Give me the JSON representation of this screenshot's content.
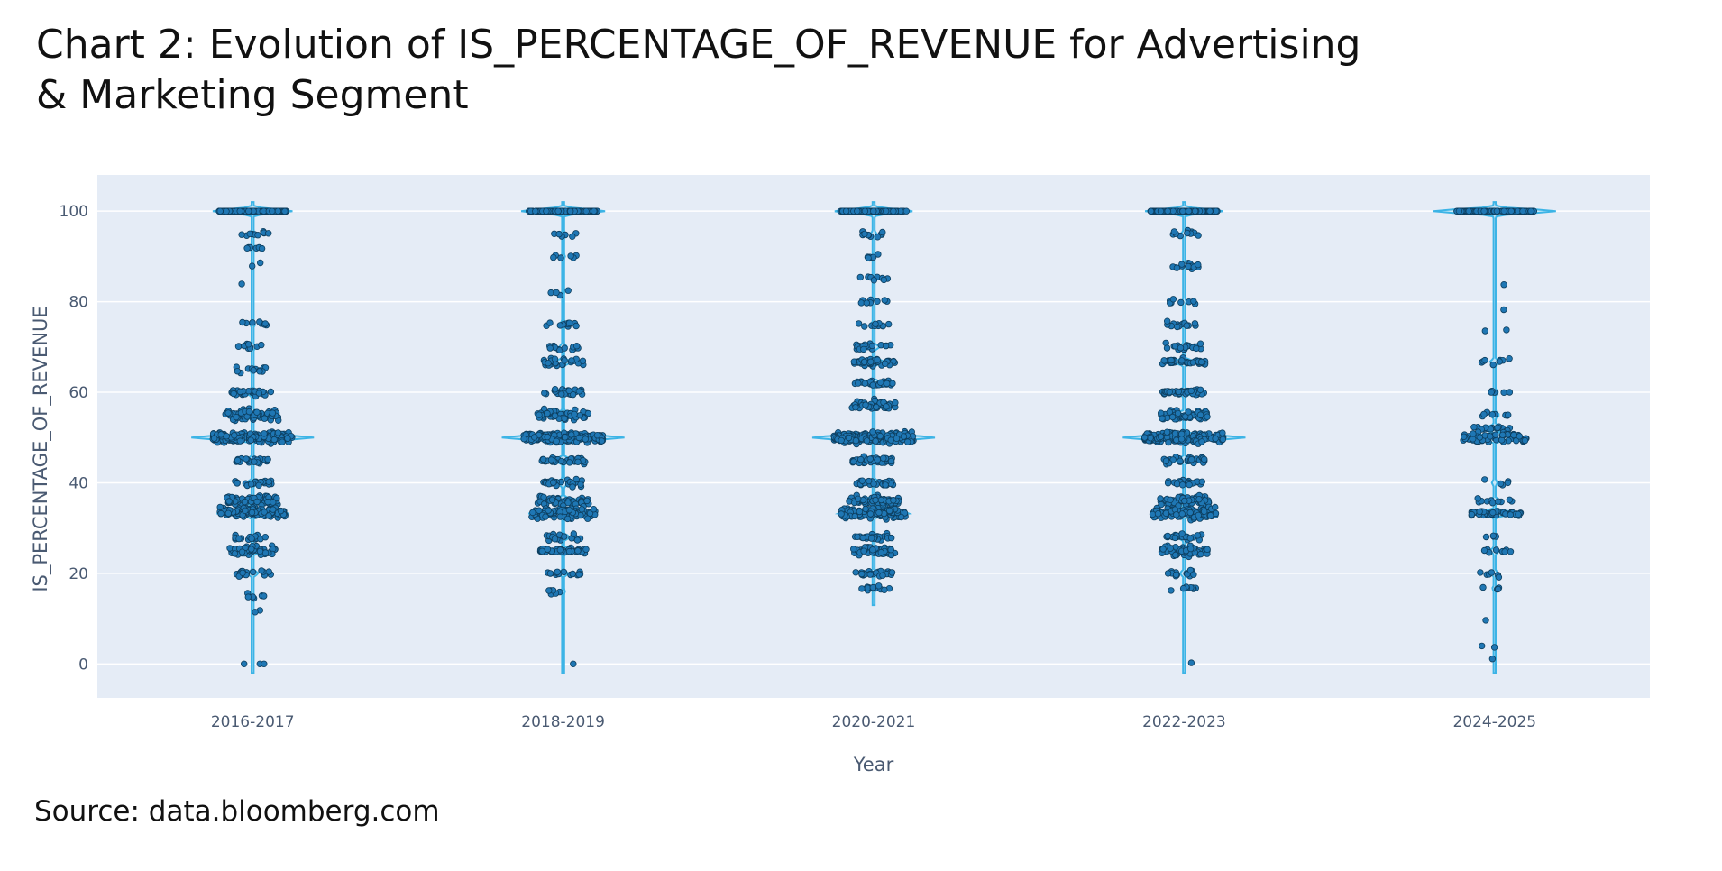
{
  "title": "Chart 2: Evolution of IS_PERCENTAGE_OF_REVENUE for Advertising & Marketing Segment",
  "source": "Source: data.bloomberg.com",
  "colors": {
    "plot_background": "#e5ecf6",
    "gridline": "#ffffff",
    "violin_line": "#3cb4e6",
    "violin_fill": "#a6dcf5",
    "point_fill": "#1f77b4",
    "point_outline": "#0d3e5e"
  },
  "chart_data": {
    "type": "violin",
    "xlabel": "Year",
    "ylabel": "IS_PERCENTAGE_OF_REVENUE",
    "ylim": [
      -7.5,
      108
    ],
    "y_ticks": [
      0,
      20,
      40,
      60,
      80,
      100
    ],
    "grid": true,
    "points_shown": "all (jittered)",
    "categories": [
      "2016-2017",
      "2018-2019",
      "2020-2021",
      "2022-2023",
      "2024-2025"
    ],
    "series": [
      {
        "category": "2016-2017",
        "y_range": [
          0,
          100
        ],
        "value_clusters": [
          {
            "y": 100,
            "count": 130
          },
          {
            "y": 95,
            "count": 10
          },
          {
            "y": 92,
            "count": 6
          },
          {
            "y": 88,
            "count": 2
          },
          {
            "y": 83,
            "count": 1
          },
          {
            "y": 75,
            "count": 8
          },
          {
            "y": 70,
            "count": 10
          },
          {
            "y": 65,
            "count": 12
          },
          {
            "y": 60,
            "count": 30
          },
          {
            "y": 55,
            "count": 70
          },
          {
            "y": 50,
            "count": 200
          },
          {
            "y": 45,
            "count": 25
          },
          {
            "y": 40,
            "count": 20
          },
          {
            "y": 36,
            "count": 60
          },
          {
            "y": 33.3,
            "count": 120
          },
          {
            "y": 28,
            "count": 15
          },
          {
            "y": 25,
            "count": 45
          },
          {
            "y": 20,
            "count": 18
          },
          {
            "y": 15,
            "count": 6
          },
          {
            "y": 12,
            "count": 2
          },
          {
            "y": 0,
            "count": 3
          }
        ]
      },
      {
        "category": "2018-2019",
        "y_range": [
          0,
          100
        ],
        "value_clusters": [
          {
            "y": 100,
            "count": 130
          },
          {
            "y": 95,
            "count": 6
          },
          {
            "y": 90,
            "count": 6
          },
          {
            "y": 82,
            "count": 4
          },
          {
            "y": 75,
            "count": 12
          },
          {
            "y": 70,
            "count": 12
          },
          {
            "y": 66.7,
            "count": 25
          },
          {
            "y": 60,
            "count": 25
          },
          {
            "y": 55,
            "count": 60
          },
          {
            "y": 50,
            "count": 190
          },
          {
            "y": 45,
            "count": 35
          },
          {
            "y": 40,
            "count": 30
          },
          {
            "y": 36,
            "count": 55
          },
          {
            "y": 33.3,
            "count": 110
          },
          {
            "y": 28,
            "count": 20
          },
          {
            "y": 25,
            "count": 40
          },
          {
            "y": 20,
            "count": 15
          },
          {
            "y": 16,
            "count": 6
          },
          {
            "y": 0,
            "count": 1
          }
        ]
      },
      {
        "category": "2020-2021",
        "y_range": [
          15,
          100
        ],
        "value_clusters": [
          {
            "y": 100,
            "count": 140
          },
          {
            "y": 95,
            "count": 10
          },
          {
            "y": 90,
            "count": 6
          },
          {
            "y": 85,
            "count": 8
          },
          {
            "y": 80,
            "count": 8
          },
          {
            "y": 75,
            "count": 10
          },
          {
            "y": 70,
            "count": 20
          },
          {
            "y": 66.7,
            "count": 40
          },
          {
            "y": 62,
            "count": 35
          },
          {
            "y": 57,
            "count": 45
          },
          {
            "y": 50,
            "count": 220
          },
          {
            "y": 45,
            "count": 40
          },
          {
            "y": 40,
            "count": 30
          },
          {
            "y": 36,
            "count": 60
          },
          {
            "y": 33.3,
            "count": 130
          },
          {
            "y": 28,
            "count": 25
          },
          {
            "y": 25,
            "count": 50
          },
          {
            "y": 20,
            "count": 25
          },
          {
            "y": 16.7,
            "count": 12
          }
        ]
      },
      {
        "category": "2022-2023",
        "y_range": [
          0,
          100
        ],
        "value_clusters": [
          {
            "y": 100,
            "count": 140
          },
          {
            "y": 95,
            "count": 10
          },
          {
            "y": 88,
            "count": 14
          },
          {
            "y": 80,
            "count": 8
          },
          {
            "y": 75,
            "count": 15
          },
          {
            "y": 70,
            "count": 20
          },
          {
            "y": 66.7,
            "count": 40
          },
          {
            "y": 60,
            "count": 40
          },
          {
            "y": 55,
            "count": 55
          },
          {
            "y": 50,
            "count": 220
          },
          {
            "y": 45,
            "count": 30
          },
          {
            "y": 40,
            "count": 20
          },
          {
            "y": 36,
            "count": 60
          },
          {
            "y": 33.3,
            "count": 120
          },
          {
            "y": 28,
            "count": 25
          },
          {
            "y": 25,
            "count": 50
          },
          {
            "y": 20,
            "count": 15
          },
          {
            "y": 16.7,
            "count": 8
          },
          {
            "y": 0,
            "count": 1
          }
        ]
      },
      {
        "category": "2024-2025",
        "y_range": [
          0,
          100
        ],
        "value_clusters": [
          {
            "y": 100,
            "count": 110
          },
          {
            "y": 84,
            "count": 1
          },
          {
            "y": 78,
            "count": 1
          },
          {
            "y": 74,
            "count": 2
          },
          {
            "y": 66.7,
            "count": 8
          },
          {
            "y": 60,
            "count": 6
          },
          {
            "y": 55,
            "count": 8
          },
          {
            "y": 52,
            "count": 20
          },
          {
            "y": 50,
            "count": 60
          },
          {
            "y": 40,
            "count": 5
          },
          {
            "y": 36,
            "count": 10
          },
          {
            "y": 33.3,
            "count": 40
          },
          {
            "y": 28,
            "count": 4
          },
          {
            "y": 25,
            "count": 8
          },
          {
            "y": 20,
            "count": 6
          },
          {
            "y": 16.7,
            "count": 4
          },
          {
            "y": 10,
            "count": 1
          },
          {
            "y": 4,
            "count": 2
          },
          {
            "y": 1,
            "count": 1
          }
        ]
      }
    ]
  }
}
